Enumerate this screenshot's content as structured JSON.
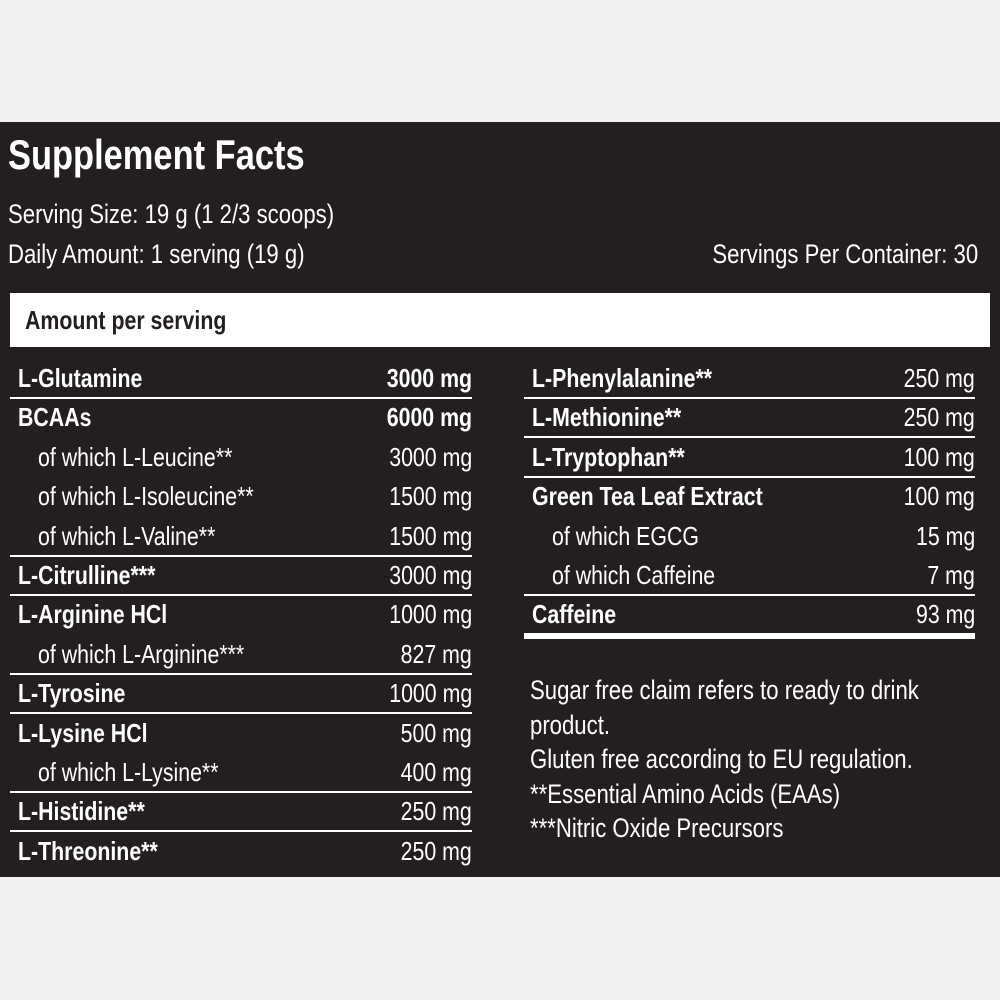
{
  "title": "Supplement Facts",
  "serving_size": "Serving Size: 19 g (1 2/3 scoops)",
  "daily_amount": "Daily Amount: 1 serving (19 g)",
  "servings_per_container": "Servings Per Container: 30",
  "amount_header": "Amount per serving",
  "left_rows": [
    {
      "name": "L-Glutamine",
      "amount": "3000 mg",
      "bold": true,
      "bold_amount": true
    },
    {
      "name": "BCAAs",
      "amount": "6000 mg",
      "bold": true,
      "bold_amount": true
    },
    {
      "name": "of which L-Leucine**",
      "amount": "3000 mg",
      "sub": true
    },
    {
      "name": "of which L-Isoleucine**",
      "amount": "1500 mg",
      "sub": true
    },
    {
      "name": "of which L-Valine**",
      "amount": "1500 mg",
      "sub": true
    },
    {
      "name": "L-Citrulline***",
      "amount": "3000 mg",
      "bold": true
    },
    {
      "name": "L-Arginine HCl",
      "amount": "1000 mg",
      "bold": true
    },
    {
      "name": "of which L-Arginine***",
      "amount": "827 mg",
      "sub": true
    },
    {
      "name": "L-Tyrosine",
      "amount": "1000 mg",
      "bold": true
    },
    {
      "name": "L-Lysine HCl",
      "amount": "500 mg",
      "bold": true
    },
    {
      "name": "of which L-Lysine**",
      "amount": "400 mg",
      "sub": true
    },
    {
      "name": "L-Histidine**",
      "amount": "250 mg",
      "bold": true
    },
    {
      "name": "L-Threonine**",
      "amount": "250 mg",
      "bold": true
    }
  ],
  "right_rows": [
    {
      "name": "L-Phenylalanine**",
      "amount": "250 mg",
      "bold": true
    },
    {
      "name": "L-Methionine**",
      "amount": "250 mg",
      "bold": true
    },
    {
      "name": "L-Tryptophan**",
      "amount": "100 mg",
      "bold": true
    },
    {
      "name": "Green Tea Leaf Extract",
      "amount": "100 mg",
      "bold": true
    },
    {
      "name": "of which EGCG",
      "amount": "15 mg",
      "sub": true
    },
    {
      "name": "of which Caffeine",
      "amount": "7 mg",
      "sub": true
    },
    {
      "name": "Caffeine",
      "amount": "93 mg",
      "bold": true
    }
  ],
  "notes": [
    "Sugar free claim refers to ready to drink",
    "product.",
    "Gluten free according to EU regulation.",
    "**Essential Amino Acids (EAAs)",
    "***Nitric Oxide Precursors"
  ]
}
